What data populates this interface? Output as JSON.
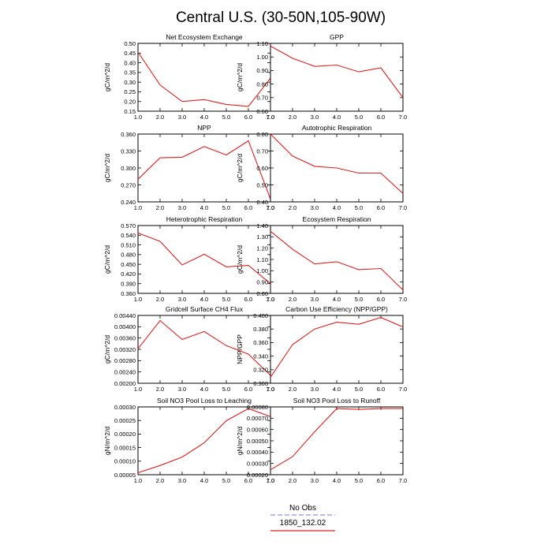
{
  "title": "Central U.S. (30-50N,105-90W)",
  "legend": {
    "entries": [
      {
        "label": "No Obs",
        "color": "#9090e0",
        "dash": true
      },
      {
        "label": "1850_132.02",
        "color": "#e02020",
        "dash": false
      }
    ]
  },
  "chart_data": [
    {
      "type": "line",
      "title": "Net Ecosystem Exchange",
      "ylabel": "gC/m^2/d",
      "x": [
        1,
        2,
        3,
        4,
        5,
        6,
        7
      ],
      "xlim": [
        1,
        7
      ],
      "xticks": [
        "1.0",
        "2.0",
        "3.0",
        "4.0",
        "5.0",
        "6.0",
        "7.0"
      ],
      "ylim": [
        0.15,
        0.5
      ],
      "yticks": [
        "0.15",
        "0.20",
        "0.25",
        "0.30",
        "0.35",
        "0.40",
        "0.45",
        "0.50"
      ],
      "series": [
        {
          "values": [
            0.455,
            0.285,
            0.2,
            0.21,
            0.185,
            0.175,
            0.32
          ],
          "color": "#e02020"
        }
      ]
    },
    {
      "type": "line",
      "title": "GPP",
      "ylabel": "gC/m^2/d",
      "x": [
        1,
        2,
        3,
        4,
        5,
        6,
        7
      ],
      "xlim": [
        1,
        7
      ],
      "xticks": [
        "1.0",
        "2.0",
        "3.0",
        "4.0",
        "5.0",
        "6.0",
        "7.0"
      ],
      "ylim": [
        0.6,
        1.1
      ],
      "yticks": [
        "0.60",
        "0.70",
        "0.80",
        "0.90",
        "1.00",
        "1.10"
      ],
      "series": [
        {
          "values": [
            1.08,
            0.99,
            0.93,
            0.94,
            0.89,
            0.92,
            0.7
          ],
          "color": "#e02020"
        }
      ]
    },
    {
      "type": "line",
      "title": "NPP",
      "ylabel": "gC/m^2/d",
      "x": [
        1,
        2,
        3,
        4,
        5,
        6,
        7
      ],
      "xlim": [
        1,
        7
      ],
      "xticks": [
        "1.0",
        "2.0",
        "3.0",
        "4.0",
        "5.0",
        "6.0",
        "7.0"
      ],
      "ylim": [
        0.24,
        0.36
      ],
      "yticks": [
        "0.240",
        "0.270",
        "0.300",
        "0.330",
        "0.360"
      ],
      "series": [
        {
          "values": [
            0.28,
            0.318,
            0.319,
            0.338,
            0.323,
            0.348,
            0.245
          ],
          "color": "#e02020"
        }
      ]
    },
    {
      "type": "line",
      "title": "Autotrophic Respiration",
      "ylabel": "gC/m^2/d",
      "x": [
        1,
        2,
        3,
        4,
        5,
        6,
        7
      ],
      "xlim": [
        1,
        7
      ],
      "xticks": [
        "1.0",
        "2.0",
        "3.0",
        "4.0",
        "5.0",
        "6.0",
        "7.0"
      ],
      "ylim": [
        0.4,
        0.8
      ],
      "yticks": [
        "0.40",
        "0.50",
        "0.60",
        "0.70",
        "0.80"
      ],
      "series": [
        {
          "values": [
            0.8,
            0.67,
            0.61,
            0.6,
            0.57,
            0.57,
            0.45
          ],
          "color": "#e02020"
        }
      ]
    },
    {
      "type": "line",
      "title": "Heterotrophic Respiration",
      "ylabel": "gC/m^2/d",
      "x": [
        1,
        2,
        3,
        4,
        5,
        6,
        7
      ],
      "xlim": [
        1,
        7
      ],
      "xticks": [
        "1.0",
        "2.0",
        "3.0",
        "4.0",
        "5.0",
        "6.0",
        "7.0"
      ],
      "ylim": [
        0.36,
        0.57
      ],
      "yticks": [
        "0.360",
        "0.390",
        "0.420",
        "0.450",
        "0.480",
        "0.510",
        "0.540",
        "0.570"
      ],
      "series": [
        {
          "values": [
            0.547,
            0.521,
            0.448,
            0.481,
            0.442,
            0.447,
            0.39
          ],
          "color": "#e02020"
        }
      ]
    },
    {
      "type": "line",
      "title": "Ecosystem Respiration",
      "ylabel": "gC/m^2/d",
      "x": [
        1,
        2,
        3,
        4,
        5,
        6,
        7
      ],
      "xlim": [
        1,
        7
      ],
      "xticks": [
        "1.0",
        "2.0",
        "3.0",
        "4.0",
        "5.0",
        "6.0",
        "7.0"
      ],
      "ylim": [
        0.8,
        1.4
      ],
      "yticks": [
        "0.80",
        "0.90",
        "1.00",
        "1.10",
        "1.20",
        "1.30",
        "1.40"
      ],
      "series": [
        {
          "values": [
            1.35,
            1.19,
            1.06,
            1.08,
            1.01,
            1.02,
            0.83
          ],
          "color": "#e02020"
        }
      ]
    },
    {
      "type": "line",
      "title": "Gridcell Surface CH4 Flux",
      "ylabel": "gC/m^2/d",
      "x": [
        1,
        2,
        3,
        4,
        5,
        6,
        7
      ],
      "xlim": [
        1,
        7
      ],
      "xticks": [
        "1.0",
        "2.0",
        "3.0",
        "4.0",
        "5.0",
        "6.0",
        "7.0"
      ],
      "ylim": [
        0.002,
        0.0044
      ],
      "yticks": [
        "0.00200",
        "0.00240",
        "0.00280",
        "0.00320",
        "0.00360",
        "0.00400",
        "0.00440"
      ],
      "series": [
        {
          "values": [
            0.00322,
            0.00422,
            0.00355,
            0.00383,
            0.00333,
            0.00303,
            0.00228
          ],
          "color": "#e02020"
        }
      ]
    },
    {
      "type": "line",
      "title": "Carbon Use Efficiency (NPP/GPP)",
      "ylabel": "NPP/GPP",
      "x": [
        1,
        2,
        3,
        4,
        5,
        6,
        7
      ],
      "xlim": [
        1,
        7
      ],
      "xticks": [
        "1.0",
        "2.0",
        "3.0",
        "4.0",
        "5.0",
        "6.0",
        "7.0"
      ],
      "ylim": [
        0.3,
        0.4
      ],
      "yticks": [
        "0.300",
        "0.320",
        "0.340",
        "0.360",
        "0.380",
        "0.400"
      ],
      "series": [
        {
          "values": [
            0.309,
            0.357,
            0.38,
            0.39,
            0.387,
            0.397,
            0.383
          ],
          "color": "#e02020"
        }
      ]
    },
    {
      "type": "line",
      "title": "Soil NO3 Pool Loss to Leaching",
      "ylabel": "gN/m^2/d",
      "x": [
        1,
        2,
        3,
        4,
        5,
        6,
        7
      ],
      "xlim": [
        1,
        7
      ],
      "xticks": [
        "1.0",
        "2.0",
        "3.0",
        "4.0",
        "5.0",
        "6.0",
        "7.0"
      ],
      "ylim": [
        4e-05,
        0.00032
      ],
      "yticks": [
        "0.00005",
        "0.00010",
        "0.00015",
        "0.00020",
        "0.00025",
        "0.00030"
      ],
      "series": [
        {
          "values": [
            4.8e-05,
            7.8e-05,
            0.000113,
            0.000172,
            0.000263,
            0.000313,
            0.00028
          ],
          "color": "#e02020"
        }
      ]
    },
    {
      "type": "line",
      "title": "Soil NO3 Pool Loss to Runoff",
      "ylabel": "gN/m^2/d",
      "x": [
        1,
        2,
        3,
        4,
        5,
        6,
        7
      ],
      "xlim": [
        1,
        7
      ],
      "xticks": [
        "1.0",
        "2.0",
        "3.0",
        "4.0",
        "5.0",
        "6.0",
        "7.0"
      ],
      "ylim": [
        0.0002,
        0.0008
      ],
      "yticks": [
        "0.00020",
        "0.00030",
        "0.00040",
        "0.00050",
        "0.00060",
        "0.00070",
        "0.00080"
      ],
      "series": [
        {
          "values": [
            0.000243,
            0.00036,
            0.00058,
            0.000785,
            0.000778,
            0.000785,
            0.000785
          ],
          "color": "#e02020"
        }
      ]
    }
  ]
}
